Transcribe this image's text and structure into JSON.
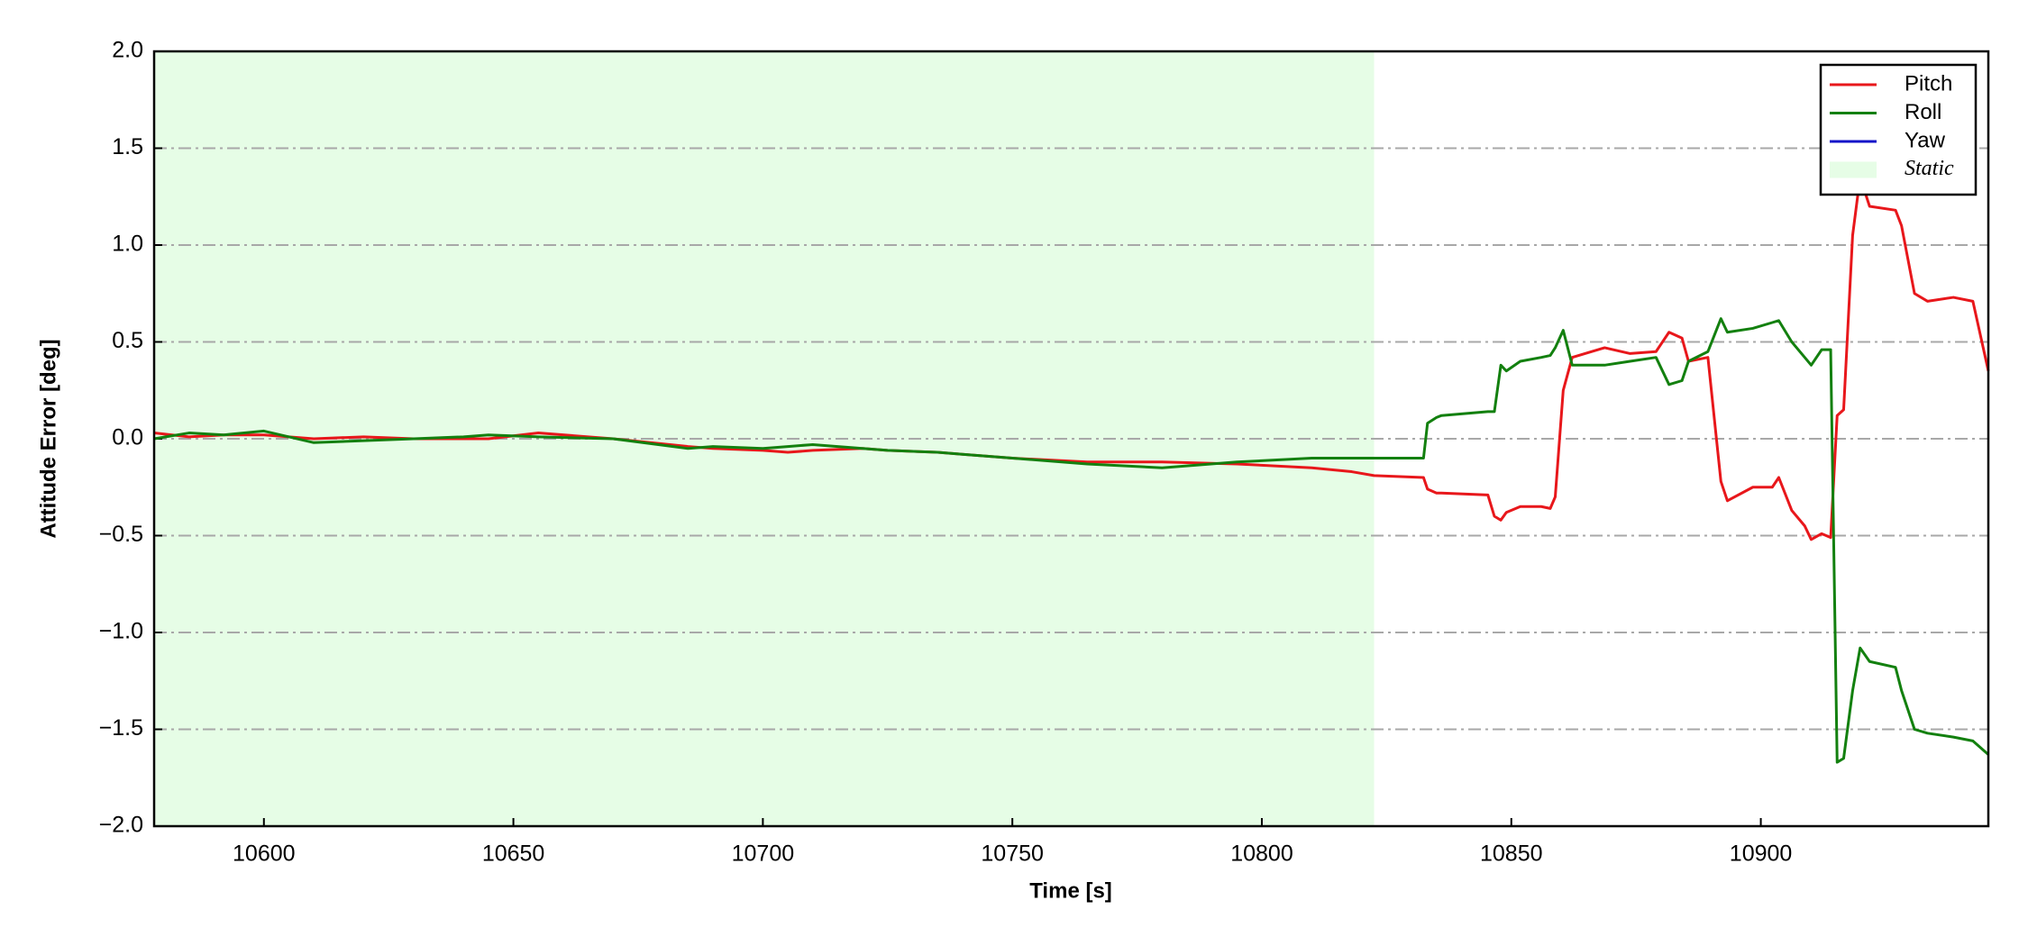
{
  "chart_data": {
    "type": "line",
    "xlabel": "Time [s]",
    "ylabel": "Attitude Error [deg]",
    "x": [
      10578,
      10585,
      10592,
      10600,
      10610,
      10620,
      10630,
      10640,
      10645,
      10655,
      10670,
      10685,
      10690,
      10700,
      10705,
      10710,
      10720,
      10725,
      10735,
      10740,
      10750,
      10765,
      10780,
      10795,
      10810,
      10818,
      10822.5,
      10832.4,
      10833.2,
      10835,
      10836,
      10845.3,
      10846.6,
      10847.9,
      10849,
      10851.8,
      10856,
      10857.8,
      10858.8,
      10860.4,
      10862.2,
      10868.7,
      10873.8,
      10879,
      10881.6,
      10884.2,
      10885.5,
      10889.4,
      10892,
      10893.3,
      10898.4,
      10902.3,
      10903.6,
      10906.2,
      10908.8,
      10910.1,
      10912.2,
      10914,
      10915.3,
      10916.6,
      10918.4,
      10919.9,
      10921.8,
      10927,
      10928.2,
      10930.8,
      10933.4,
      10938.6,
      10942.5,
      10945.6
    ],
    "series": [
      {
        "name": "Pitch",
        "color": "#e8171b",
        "values": [
          0.03,
          0.01,
          0.02,
          0.02,
          0.0,
          0.01,
          0.0,
          0.0,
          0.0,
          0.03,
          0.0,
          -0.04,
          -0.05,
          -0.06,
          -0.07,
          -0.06,
          -0.05,
          -0.06,
          -0.07,
          -0.08,
          -0.1,
          -0.12,
          -0.12,
          -0.13,
          -0.15,
          -0.17,
          -0.19,
          -0.2,
          -0.26,
          -0.28,
          -0.28,
          -0.29,
          -0.4,
          -0.42,
          -0.38,
          -0.35,
          -0.35,
          -0.36,
          -0.3,
          0.25,
          0.42,
          0.47,
          0.44,
          0.45,
          0.55,
          0.52,
          0.4,
          0.42,
          -0.22,
          -0.32,
          -0.25,
          -0.25,
          -0.2,
          -0.37,
          -0.45,
          -0.52,
          -0.49,
          -0.51,
          0.12,
          0.15,
          1.05,
          1.35,
          1.2,
          1.18,
          1.1,
          0.75,
          0.71,
          0.73,
          0.71,
          0.35
        ]
      },
      {
        "name": "Roll",
        "color": "#13800f",
        "values": [
          0.0,
          0.03,
          0.02,
          0.04,
          -0.02,
          -0.01,
          0.0,
          0.01,
          0.02,
          0.01,
          0.0,
          -0.05,
          -0.04,
          -0.05,
          -0.04,
          -0.03,
          -0.05,
          -0.06,
          -0.07,
          -0.08,
          -0.1,
          -0.13,
          -0.15,
          -0.12,
          -0.1,
          -0.1,
          -0.1,
          -0.1,
          0.08,
          0.11,
          0.12,
          0.14,
          0.14,
          0.38,
          0.35,
          0.4,
          0.42,
          0.43,
          0.47,
          0.56,
          0.38,
          0.38,
          0.4,
          0.42,
          0.28,
          0.3,
          0.4,
          0.45,
          0.62,
          0.55,
          0.57,
          0.6,
          0.61,
          0.5,
          0.42,
          0.38,
          0.46,
          0.46,
          -1.67,
          -1.65,
          -1.3,
          -1.08,
          -1.15,
          -1.18,
          -1.3,
          -1.5,
          -1.52,
          -1.54,
          -1.56,
          -1.63
        ]
      },
      {
        "name": "Yaw",
        "color": "#1414c8",
        "values": [
          null,
          null,
          null,
          null,
          null,
          null,
          null,
          null,
          null,
          null,
          null,
          null,
          null,
          null,
          null,
          null,
          null,
          null,
          null,
          null,
          null,
          null,
          null,
          null,
          null,
          null,
          null,
          null,
          null,
          null,
          null,
          null,
          null,
          null,
          null,
          null,
          null,
          null,
          null,
          null,
          null,
          null,
          null,
          null,
          null,
          null,
          null,
          null,
          null,
          null,
          null,
          null,
          null,
          null,
          null,
          null,
          null,
          null,
          null,
          null,
          null,
          null,
          null,
          null,
          null,
          null,
          null,
          null,
          null,
          null
        ]
      }
    ],
    "span": {
      "name": "Static",
      "color": "#e6fde6",
      "x": [
        10578,
        10822.5
      ]
    },
    "xlim": [
      10578,
      10945.6
    ],
    "ylim": [
      -2.0,
      2.0
    ],
    "xticks": [
      10600,
      10650,
      10700,
      10750,
      10800,
      10850,
      10900
    ],
    "yticks": [
      {
        "value": -2.0,
        "label": "−2.0"
      },
      {
        "value": -1.5,
        "label": "−1.5"
      },
      {
        "value": -1.0,
        "label": "−1.0"
      },
      {
        "value": -0.5,
        "label": "−0.5"
      },
      {
        "value": 0.0,
        "label": "0.0"
      },
      0.5,
      {
        "value": 1.0,
        "label": "1.0"
      },
      1.5,
      {
        "value": 2.0,
        "label": "2.0"
      }
    ],
    "grid": true,
    "legend": "upper right"
  }
}
